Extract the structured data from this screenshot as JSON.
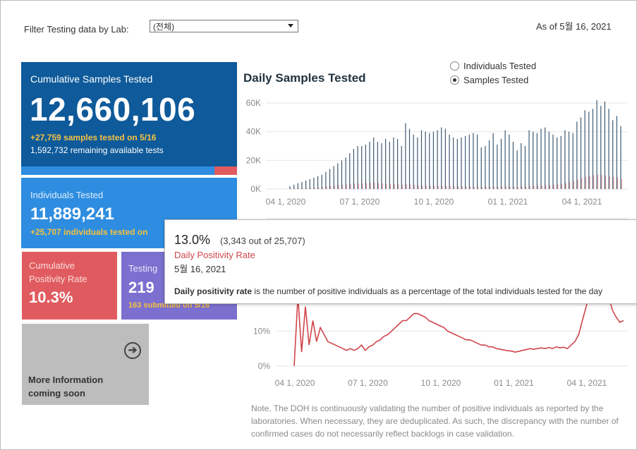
{
  "filter": {
    "label": "Filter Testing data by Lab:",
    "value": "(전체)"
  },
  "as_of": "As of 5월 16, 2021",
  "cards": {
    "cumulative_samples": {
      "title": "Cumulative Samples Tested",
      "value": "12,660,106",
      "delta": "+27,759 samples tested on 5/16",
      "remaining": "1,592,732 remaining available tests",
      "remaining_fraction": 0.897
    },
    "individuals": {
      "title": "Individuals Tested",
      "value": "11,889,241",
      "delta": "+25,707  individuals  tested on"
    },
    "positivity": {
      "title_line1": "Cumulative",
      "title_line2": "Positivity Rate",
      "value": "10.3%"
    },
    "testing": {
      "title": "Testing",
      "value": "219",
      "delta": "163 submitted on 5/16"
    },
    "more_info": {
      "line1": "More Information",
      "line2": "coming soon",
      "icon": "arrow-circle-right-icon"
    }
  },
  "chart_title": "Daily Samples Tested",
  "toggle": {
    "options": [
      "Individuals Tested",
      "Samples Tested"
    ],
    "selected": "Samples Tested"
  },
  "tooltip": {
    "rate": "13.0%",
    "detail": "(3,343 out of  25,707)",
    "measure": "Daily Positivity Rate",
    "date": "5월 16, 2021",
    "desc_bold": "Daily positivity rate",
    "desc_rest": " is the number of positive individuals as a percentage of the total individuals tested for the day"
  },
  "note": "Note. The DOH is continuously validating the number of positive individuals as reported by the laboratories. When necessary, they are deduplicated. As such, the discrepancy with the number of confirmed cases do not necessarily reflect backlogs in case validation.",
  "colors": {
    "navy": "#0e5a9a",
    "blue": "#2e8de0",
    "red": "#e05b5f",
    "purple": "#7b6fcf",
    "gray": "#bdbdbd",
    "yellow": "#f5c242",
    "bar": "#3c5a73",
    "line": "#d0454b"
  },
  "chart_data": [
    {
      "type": "bar",
      "title": "Daily Samples Tested",
      "y_ticks": [
        "0K",
        "20K",
        "40K",
        "60K"
      ],
      "ylim": [
        0,
        62000
      ],
      "x_ticks": [
        "04 1, 2020",
        "07 1, 2020",
        "10 1, 2020",
        "01 1, 2021",
        "04 1, 2021"
      ],
      "x_tick_pos": [
        0.0,
        0.25,
        0.5,
        0.75,
        1.0
      ],
      "series": [
        {
          "values": [
            2000,
            3000,
            4000,
            5000,
            6000,
            7000,
            8000,
            9000,
            10000,
            12000,
            14000,
            16000,
            18000,
            20000,
            22000,
            25000,
            28000,
            30000,
            30000,
            31000,
            33000,
            36000,
            33000,
            32000,
            35000,
            33000,
            36000,
            35000,
            30000,
            46000,
            42000,
            38000,
            36000,
            41000,
            40000,
            39000,
            40000,
            41000,
            43000,
            42000,
            38000,
            36000,
            35000,
            36000,
            37000,
            38000,
            39000,
            38000,
            29000,
            30000,
            34000,
            39000,
            31000,
            35000,
            41000,
            38000,
            33000,
            27000,
            32000,
            30000,
            41000,
            40000,
            39000,
            42000,
            43000,
            40000,
            38000,
            36000,
            37000,
            41000,
            40000,
            39000,
            47000,
            50000,
            55000,
            54000,
            56000,
            62000,
            58000,
            61000,
            56000,
            48000,
            51000,
            44000
          ]
        },
        {
          "values": [
            300,
            400,
            500,
            600,
            700,
            800,
            1000,
            1200,
            1400,
            1800,
            2200,
            2600,
            2800,
            3000,
            3200,
            3600,
            3800,
            3900,
            4000,
            4100,
            4300,
            4600,
            4200,
            3900,
            3800,
            3500,
            3600,
            3400,
            3000,
            3500,
            3200,
            2900,
            2600,
            2600,
            2500,
            2400,
            2400,
            2300,
            2300,
            2200,
            2100,
            2000,
            1900,
            1900,
            1800,
            1800,
            1700,
            1700,
            1500,
            1600,
            1700,
            1800,
            1600,
            1700,
            1900,
            1800,
            1700,
            1500,
            1700,
            1700,
            2000,
            2100,
            2200,
            2400,
            2600,
            2800,
            3000,
            3200,
            3600,
            4200,
            4800,
            5600,
            6500,
            7500,
            8500,
            9000,
            9500,
            10000,
            9800,
            9500,
            9000,
            8500,
            8000,
            7000
          ]
        }
      ]
    },
    {
      "type": "line",
      "title": "Daily Positivity Rate",
      "y_ticks": [
        "0%",
        "10%"
      ],
      "ylim": [
        0,
        0.25
      ],
      "x_ticks": [
        "04 1, 2020",
        "07 1, 2020",
        "10 1, 2020",
        "01 1, 2021",
        "04 1, 2021"
      ],
      "x_tick_pos": [
        0.0,
        0.25,
        0.5,
        0.75,
        1.0
      ],
      "values": [
        0.0,
        0.2,
        0.04,
        0.17,
        0.06,
        0.13,
        0.07,
        0.11,
        0.09,
        0.07,
        0.065,
        0.06,
        0.055,
        0.05,
        0.045,
        0.05,
        0.045,
        0.05,
        0.06,
        0.045,
        0.055,
        0.06,
        0.07,
        0.075,
        0.085,
        0.09,
        0.1,
        0.11,
        0.12,
        0.13,
        0.13,
        0.14,
        0.15,
        0.15,
        0.145,
        0.14,
        0.13,
        0.125,
        0.12,
        0.115,
        0.11,
        0.1,
        0.095,
        0.09,
        0.085,
        0.08,
        0.075,
        0.075,
        0.07,
        0.065,
        0.06,
        0.06,
        0.055,
        0.055,
        0.05,
        0.048,
        0.046,
        0.044,
        0.043,
        0.04,
        0.042,
        0.045,
        0.047,
        0.05,
        0.048,
        0.05,
        0.052,
        0.05,
        0.053,
        0.05,
        0.055,
        0.052,
        0.054,
        0.05,
        0.06,
        0.07,
        0.09,
        0.13,
        0.17,
        0.21,
        0.24,
        0.26,
        0.27,
        0.25,
        0.2,
        0.16,
        0.14,
        0.125,
        0.13
      ]
    }
  ]
}
